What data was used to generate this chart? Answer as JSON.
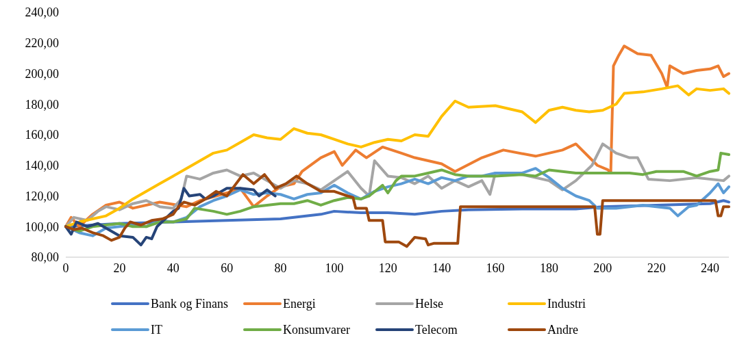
{
  "chart_data": {
    "type": "line",
    "xlim": [
      0,
      247
    ],
    "xticks": [
      0,
      20,
      40,
      60,
      80,
      100,
      120,
      140,
      160,
      180,
      200,
      220,
      240
    ],
    "ylim": [
      80,
      240
    ],
    "yticks": [
      {
        "value": 80,
        "label": "80,00"
      },
      {
        "value": 100,
        "label": "100,00"
      },
      {
        "value": 120,
        "label": "120,00"
      },
      {
        "value": 140,
        "label": "140,00"
      },
      {
        "value": 160,
        "label": "160,00"
      },
      {
        "value": 180,
        "label": "180,00"
      },
      {
        "value": 200,
        "label": "200,00"
      },
      {
        "value": 220,
        "label": "220,00"
      },
      {
        "value": 240,
        "label": "240,00"
      }
    ],
    "grid": false,
    "legend": "bottom",
    "marker": "none",
    "line_style": "solid",
    "series": [
      {
        "name": "Bank og Finans",
        "color": "#4472c4",
        "x": [
          0,
          20,
          40,
          60,
          80,
          95,
          100,
          110,
          120,
          130,
          140,
          150,
          170,
          190,
          200,
          220,
          240,
          245,
          247
        ],
        "values": [
          100,
          102,
          103,
          104,
          105,
          108,
          110,
          109,
          109,
          108,
          110,
          111,
          111.5,
          111.5,
          113,
          114,
          115,
          117,
          116
        ]
      },
      {
        "name": "Energi",
        "color": "#ed7d31",
        "x": [
          0,
          2,
          5,
          10,
          15,
          20,
          25,
          35,
          45,
          50,
          60,
          65,
          70,
          75,
          80,
          85,
          88,
          95,
          100,
          103,
          108,
          112,
          118,
          125,
          130,
          140,
          145,
          155,
          163,
          175,
          185,
          190,
          198,
          202,
          203,
          204,
          206,
          208,
          213,
          218,
          222,
          224,
          225,
          230,
          235,
          240,
          243,
          245,
          247
        ],
        "values": [
          100,
          106,
          100,
          108,
          114,
          116,
          112,
          116,
          113,
          117,
          122,
          125,
          113,
          120,
          126,
          128,
          136,
          145,
          149,
          140,
          150,
          145,
          152,
          148,
          145,
          141,
          136,
          145,
          150,
          146,
          150,
          154,
          140,
          137,
          135,
          205,
          212,
          218,
          213,
          212,
          200,
          191,
          205,
          200,
          202,
          203,
          205,
          198,
          200
        ]
      },
      {
        "name": "Helse",
        "color": "#a5a5a5",
        "x": [
          0,
          3,
          8,
          12,
          15,
          20,
          25,
          30,
          35,
          40,
          43,
          45,
          50,
          55,
          60,
          65,
          70,
          75,
          80,
          85,
          90,
          95,
          100,
          105,
          110,
          113,
          115,
          120,
          125,
          130,
          135,
          140,
          145,
          150,
          155,
          158,
          160,
          170,
          180,
          185,
          190,
          196,
          200,
          205,
          210,
          213,
          217,
          225,
          235,
          245,
          247
        ],
        "values": [
          100,
          106,
          104,
          110,
          113,
          111,
          115,
          117,
          113,
          112,
          118,
          133,
          131,
          135,
          137,
          133,
          135,
          130,
          125,
          130,
          128,
          124,
          130,
          136,
          125,
          120,
          143,
          133,
          132,
          128,
          133,
          125,
          130,
          126,
          130,
          121,
          135,
          134,
          130,
          124,
          130,
          140,
          154,
          148,
          145,
          145,
          131,
          130,
          132,
          130,
          133
        ]
      },
      {
        "name": "Industri",
        "color": "#ffc000",
        "x": [
          0,
          5,
          10,
          15,
          20,
          25,
          30,
          35,
          40,
          45,
          50,
          55,
          60,
          65,
          70,
          75,
          80,
          85,
          90,
          95,
          100,
          105,
          110,
          115,
          120,
          125,
          130,
          135,
          140,
          145,
          150,
          160,
          170,
          175,
          180,
          185,
          190,
          195,
          200,
          205,
          208,
          215,
          222,
          228,
          232,
          235,
          240,
          245,
          247
        ],
        "values": [
          100,
          103,
          105,
          107,
          112,
          118,
          123,
          128,
          133,
          138,
          143,
          148,
          150,
          155,
          160,
          158,
          157,
          164,
          161,
          160,
          157,
          154,
          152,
          155,
          157,
          156,
          160,
          159,
          172,
          182,
          178,
          179,
          175,
          168,
          176,
          178,
          176,
          175,
          176,
          180,
          187,
          188,
          190,
          192,
          186,
          190,
          189,
          190,
          187
        ]
      },
      {
        "name": "IT",
        "color": "#5b9bd5",
        "x": [
          0,
          5,
          10,
          15,
          20,
          25,
          30,
          35,
          40,
          45,
          50,
          55,
          60,
          65,
          70,
          75,
          80,
          85,
          90,
          95,
          100,
          105,
          110,
          115,
          120,
          125,
          130,
          135,
          140,
          145,
          150,
          155,
          160,
          170,
          175,
          180,
          185,
          190,
          195,
          198,
          205,
          210,
          215,
          220,
          225,
          228,
          232,
          235,
          240,
          243,
          245,
          247
        ],
        "values": [
          100,
          96,
          94,
          99,
          100,
          101,
          100,
          104,
          103,
          106,
          113,
          117,
          120,
          124,
          121,
          122,
          121,
          118,
          121,
          122,
          127,
          122,
          118,
          123,
          126,
          128,
          131,
          128,
          132,
          130,
          133,
          133,
          135,
          135,
          138,
          132,
          125,
          120,
          117,
          112,
          112,
          113,
          114,
          113,
          112,
          107,
          113,
          114,
          122,
          128,
          122,
          126
        ]
      },
      {
        "name": "Konsumvarer",
        "color": "#70ad47",
        "x": [
          0,
          5,
          10,
          15,
          20,
          25,
          30,
          35,
          40,
          45,
          48,
          55,
          60,
          65,
          70,
          75,
          80,
          85,
          90,
          95,
          100,
          105,
          110,
          113,
          118,
          120,
          123,
          125,
          130,
          135,
          140,
          145,
          150,
          160,
          170,
          175,
          180,
          190,
          200,
          210,
          215,
          220,
          230,
          235,
          240,
          243,
          244,
          247
        ],
        "values": [
          100,
          97,
          100,
          101,
          102,
          100,
          100,
          103,
          103,
          105,
          112,
          110,
          108,
          110,
          113,
          114,
          115,
          115,
          117,
          114,
          117,
          119,
          118,
          120,
          127,
          122,
          130,
          133,
          133,
          135,
          137,
          134,
          133,
          133,
          134,
          133,
          137,
          135,
          135,
          135,
          134,
          136,
          136,
          133,
          136,
          137,
          148,
          147
        ]
      },
      {
        "name": "Telecom",
        "color": "#264478",
        "x": [
          0,
          2,
          4,
          8,
          12,
          16,
          20,
          25,
          28,
          30,
          32,
          34,
          37,
          40,
          42,
          44,
          46,
          50,
          52,
          55,
          60,
          65,
          70,
          72,
          75,
          78
        ],
        "values": [
          100,
          95,
          103,
          100,
          102,
          98,
          94,
          93,
          88,
          93,
          92,
          100,
          105,
          110,
          112,
          125,
          120,
          121,
          118,
          120,
          125,
          125,
          124,
          120,
          124,
          120
        ]
      },
      {
        "name": "Andre",
        "color": "#9e480e",
        "x": [
          0,
          3,
          6,
          10,
          14,
          17,
          20,
          22,
          24,
          28,
          32,
          36,
          40,
          42,
          44,
          48,
          52,
          56,
          60,
          63,
          66,
          70,
          74,
          78,
          82,
          86,
          90,
          95,
          100,
          105,
          107,
          108,
          112,
          113,
          118,
          119,
          124,
          127,
          130,
          134,
          135,
          137,
          146,
          147,
          197,
          198,
          199,
          200,
          242,
          243,
          244,
          245,
          247
        ],
        "values": [
          100,
          98,
          99,
          96,
          94,
          91,
          93,
          99,
          103,
          101,
          104,
          105,
          108,
          113,
          116,
          114,
          118,
          123,
          120,
          127,
          134,
          128,
          134,
          125,
          128,
          133,
          128,
          123,
          123,
          120,
          119,
          112,
          112,
          104,
          104,
          90,
          90,
          87,
          93,
          92,
          88,
          89,
          89,
          113,
          113,
          95,
          95,
          117,
          117,
          107,
          107,
          113,
          113
        ]
      }
    ]
  }
}
